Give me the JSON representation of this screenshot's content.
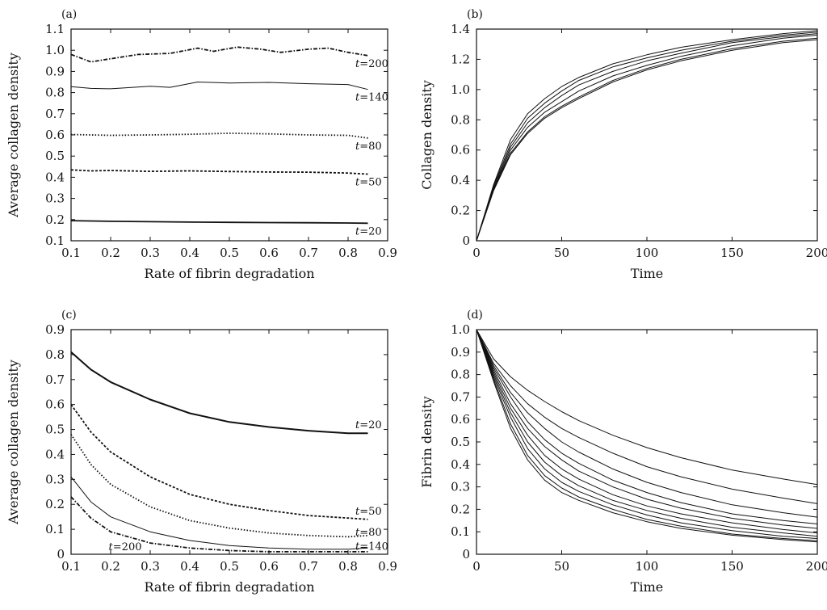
{
  "chart_data": [
    {
      "panel": "(a)",
      "type": "line",
      "xlabel": "Rate of fibrin degradation",
      "ylabel": "Average collagen density",
      "xlim": [
        0.1,
        0.9
      ],
      "ylim": [
        0.1,
        1.1
      ],
      "xticks": [
        "0.1",
        "0.2",
        "0.3",
        "0.4",
        "0.5",
        "0.6",
        "0.7",
        "0.8",
        "0.9"
      ],
      "yticks": [
        "0.1",
        "0.2",
        "0.3",
        "0.4",
        "0.5",
        "0.6",
        "0.7",
        "0.8",
        "0.9",
        "1.0",
        "1.1"
      ],
      "grid": false,
      "series": [
        {
          "name": "t=20",
          "style": "solid",
          "x": [
            0.1,
            0.2,
            0.3,
            0.4,
            0.5,
            0.6,
            0.7,
            0.8,
            0.85
          ],
          "y": [
            0.195,
            0.192,
            0.19,
            0.188,
            0.187,
            0.186,
            0.185,
            0.184,
            0.183
          ]
        },
        {
          "name": "t=50",
          "style": "dashed",
          "x": [
            0.1,
            0.15,
            0.2,
            0.3,
            0.4,
            0.5,
            0.6,
            0.7,
            0.8,
            0.85
          ],
          "y": [
            0.435,
            0.43,
            0.432,
            0.428,
            0.43,
            0.427,
            0.425,
            0.424,
            0.42,
            0.415
          ]
        },
        {
          "name": "t=80",
          "style": "dotted",
          "x": [
            0.1,
            0.2,
            0.3,
            0.4,
            0.5,
            0.6,
            0.7,
            0.8,
            0.85
          ],
          "y": [
            0.602,
            0.598,
            0.6,
            0.603,
            0.608,
            0.605,
            0.6,
            0.598,
            0.585
          ]
        },
        {
          "name": "t=140",
          "style": "thin",
          "x": [
            0.1,
            0.15,
            0.2,
            0.3,
            0.35,
            0.42,
            0.5,
            0.6,
            0.7,
            0.8,
            0.85
          ],
          "y": [
            0.828,
            0.82,
            0.818,
            0.83,
            0.825,
            0.85,
            0.845,
            0.848,
            0.842,
            0.838,
            0.815
          ]
        },
        {
          "name": "t=200",
          "style": "dashdot",
          "x": [
            0.1,
            0.15,
            0.2,
            0.27,
            0.35,
            0.42,
            0.46,
            0.52,
            0.58,
            0.63,
            0.7,
            0.75,
            0.8,
            0.85
          ],
          "y": [
            0.98,
            0.945,
            0.96,
            0.98,
            0.985,
            1.01,
            0.995,
            1.015,
            1.005,
            0.99,
            1.005,
            1.01,
            0.99,
            0.975
          ]
        }
      ],
      "annotations": [
        "t=200",
        "t=140",
        "t=80",
        "t=50",
        "t=20"
      ]
    },
    {
      "panel": "(b)",
      "type": "line",
      "xlabel": "Time",
      "ylabel": "Collagen density",
      "xlim": [
        0,
        200
      ],
      "ylim": [
        0,
        1.4
      ],
      "xticks": [
        "0",
        "50",
        "100",
        "150",
        "200"
      ],
      "yticks": [
        "0",
        "0.2",
        "0.4",
        "0.6",
        "0.8",
        "1.0",
        "1.2",
        "1.4"
      ],
      "grid": false,
      "x": [
        0,
        10,
        20,
        30,
        40,
        50,
        60,
        80,
        100,
        120,
        150,
        180,
        200
      ],
      "series": [
        {
          "y": [
            0,
            0.34,
            0.58,
            0.72,
            0.82,
            0.89,
            0.95,
            1.06,
            1.14,
            1.2,
            1.27,
            1.32,
            1.34
          ]
        },
        {
          "y": [
            0,
            0.34,
            0.6,
            0.75,
            0.85,
            0.92,
            0.99,
            1.09,
            1.16,
            1.22,
            1.29,
            1.34,
            1.36
          ]
        },
        {
          "y": [
            0,
            0.35,
            0.62,
            0.78,
            0.88,
            0.96,
            1.03,
            1.12,
            1.19,
            1.24,
            1.31,
            1.35,
            1.37
          ]
        },
        {
          "y": [
            0,
            0.36,
            0.64,
            0.81,
            0.91,
            0.99,
            1.06,
            1.15,
            1.21,
            1.26,
            1.32,
            1.36,
            1.38
          ]
        },
        {
          "y": [
            0,
            0.37,
            0.67,
            0.84,
            0.94,
            1.02,
            1.08,
            1.17,
            1.23,
            1.28,
            1.33,
            1.37,
            1.39
          ]
        },
        {
          "y": [
            0,
            0.33,
            0.57,
            0.71,
            0.81,
            0.88,
            0.94,
            1.05,
            1.13,
            1.19,
            1.26,
            1.31,
            1.33
          ]
        }
      ]
    },
    {
      "panel": "(c)",
      "type": "line",
      "xlabel": "Rate of fibrin degradation",
      "ylabel": "Average collagen density",
      "xlim": [
        0.1,
        0.9
      ],
      "ylim": [
        0,
        0.9
      ],
      "xticks": [
        "0.1",
        "0.2",
        "0.3",
        "0.4",
        "0.5",
        "0.6",
        "0.7",
        "0.8",
        "0.9"
      ],
      "yticks": [
        "0",
        "0.1",
        "0.2",
        "0.3",
        "0.4",
        "0.5",
        "0.6",
        "0.7",
        "0.8",
        "0.9"
      ],
      "grid": false,
      "series": [
        {
          "name": "t=20",
          "style": "solid-thick",
          "x": [
            0.1,
            0.15,
            0.2,
            0.3,
            0.4,
            0.5,
            0.6,
            0.7,
            0.8,
            0.85
          ],
          "y": [
            0.81,
            0.74,
            0.69,
            0.62,
            0.565,
            0.53,
            0.51,
            0.495,
            0.485,
            0.485
          ]
        },
        {
          "name": "t=50",
          "style": "dashed",
          "x": [
            0.1,
            0.15,
            0.2,
            0.3,
            0.4,
            0.5,
            0.6,
            0.7,
            0.8,
            0.85
          ],
          "y": [
            0.6,
            0.49,
            0.41,
            0.31,
            0.24,
            0.2,
            0.175,
            0.155,
            0.145,
            0.14
          ]
        },
        {
          "name": "t=80",
          "style": "dotted",
          "x": [
            0.1,
            0.15,
            0.2,
            0.3,
            0.4,
            0.5,
            0.6,
            0.7,
            0.8,
            0.85
          ],
          "y": [
            0.48,
            0.36,
            0.28,
            0.19,
            0.135,
            0.105,
            0.085,
            0.075,
            0.07,
            0.075
          ]
        },
        {
          "name": "t=140",
          "style": "thin",
          "x": [
            0.1,
            0.15,
            0.2,
            0.3,
            0.4,
            0.5,
            0.6,
            0.7,
            0.8,
            0.85
          ],
          "y": [
            0.31,
            0.21,
            0.15,
            0.09,
            0.055,
            0.035,
            0.025,
            0.02,
            0.02,
            0.025
          ]
        },
        {
          "name": "t=200",
          "style": "dashdot",
          "x": [
            0.1,
            0.15,
            0.2,
            0.3,
            0.4,
            0.5,
            0.6,
            0.7,
            0.8,
            0.85
          ],
          "y": [
            0.23,
            0.145,
            0.09,
            0.045,
            0.025,
            0.015,
            0.01,
            0.01,
            0.01,
            0.01
          ]
        }
      ],
      "annotations": [
        "t=20",
        "t=50",
        "t=80",
        "t=140",
        "t=200"
      ]
    },
    {
      "panel": "(d)",
      "type": "line",
      "xlabel": "Time",
      "ylabel": "Fibrin density",
      "xlim": [
        0,
        200
      ],
      "ylim": [
        0,
        1.0
      ],
      "xticks": [
        "0",
        "50",
        "100",
        "150",
        "200"
      ],
      "yticks": [
        "0",
        "0.1",
        "0.2",
        "0.3",
        "0.4",
        "0.5",
        "0.6",
        "0.7",
        "0.8",
        "0.9",
        "1.0"
      ],
      "grid": false,
      "x": [
        0,
        10,
        20,
        30,
        40,
        50,
        60,
        80,
        100,
        120,
        150,
        180,
        200
      ],
      "series": [
        {
          "y": [
            1.0,
            0.87,
            0.79,
            0.73,
            0.68,
            0.635,
            0.595,
            0.53,
            0.475,
            0.43,
            0.375,
            0.335,
            0.31
          ]
        },
        {
          "y": [
            1.0,
            0.85,
            0.75,
            0.67,
            0.61,
            0.56,
            0.52,
            0.45,
            0.39,
            0.345,
            0.29,
            0.25,
            0.225
          ]
        },
        {
          "y": [
            1.0,
            0.84,
            0.72,
            0.63,
            0.56,
            0.5,
            0.455,
            0.38,
            0.32,
            0.275,
            0.22,
            0.185,
            0.165
          ]
        },
        {
          "y": [
            1.0,
            0.83,
            0.7,
            0.59,
            0.51,
            0.45,
            0.405,
            0.33,
            0.275,
            0.23,
            0.18,
            0.15,
            0.135
          ]
        },
        {
          "y": [
            1.0,
            0.82,
            0.67,
            0.56,
            0.48,
            0.42,
            0.37,
            0.3,
            0.245,
            0.205,
            0.16,
            0.13,
            0.115
          ]
        },
        {
          "y": [
            1.0,
            0.81,
            0.65,
            0.53,
            0.44,
            0.38,
            0.335,
            0.265,
            0.215,
            0.18,
            0.14,
            0.11,
            0.095
          ]
        },
        {
          "y": [
            1.0,
            0.8,
            0.63,
            0.5,
            0.41,
            0.35,
            0.305,
            0.24,
            0.195,
            0.16,
            0.12,
            0.095,
            0.08
          ]
        },
        {
          "y": [
            1.0,
            0.79,
            0.61,
            0.47,
            0.38,
            0.32,
            0.28,
            0.22,
            0.175,
            0.14,
            0.105,
            0.08,
            0.07
          ]
        },
        {
          "y": [
            1.0,
            0.78,
            0.58,
            0.44,
            0.35,
            0.295,
            0.255,
            0.2,
            0.155,
            0.125,
            0.09,
            0.07,
            0.06
          ]
        },
        {
          "y": [
            1.0,
            0.77,
            0.56,
            0.42,
            0.33,
            0.275,
            0.24,
            0.185,
            0.145,
            0.115,
            0.085,
            0.065,
            0.055
          ]
        }
      ]
    }
  ]
}
